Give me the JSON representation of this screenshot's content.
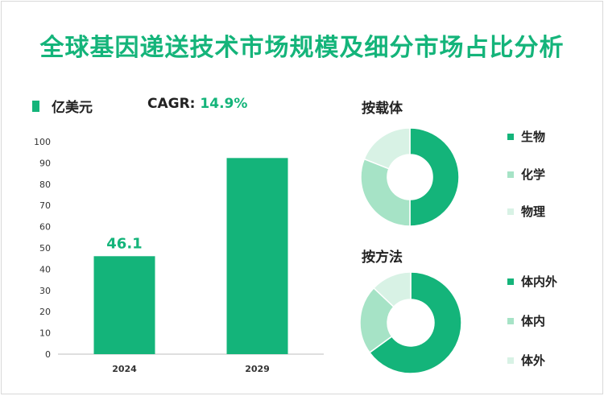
{
  "title": "全球基因递送技术市场规模及细分市场占比分析",
  "legend": {
    "label": "亿美元",
    "color": "#14b47a"
  },
  "cagr": {
    "label": "CAGR:",
    "value": "14.9%"
  },
  "chart_data": [
    {
      "type": "bar",
      "categories": [
        "2024",
        "2029"
      ],
      "values": [
        46.1,
        92.3
      ],
      "data_labels": [
        "46.1",
        ""
      ],
      "ylim": [
        0,
        100
      ],
      "yticks": [
        0,
        10,
        20,
        30,
        40,
        50,
        60,
        70,
        80,
        90,
        100
      ],
      "color": "#14b47a",
      "series": [
        {
          "name": "亿美元",
          "values": [
            46.1,
            92.3
          ]
        }
      ]
    },
    {
      "type": "pie",
      "donut": true,
      "title": "按载体",
      "labels": [
        "生物",
        "化学",
        "物理"
      ],
      "values": [
        50,
        31,
        19
      ],
      "colors": [
        "#14b47a",
        "#a6e3c6",
        "#d8f2e5"
      ]
    },
    {
      "type": "pie",
      "donut": true,
      "title": "按方法",
      "labels": [
        "体内外",
        "体内",
        "体外"
      ],
      "values": [
        65,
        22,
        13
      ],
      "colors": [
        "#14b47a",
        "#a6e3c6",
        "#d8f2e5"
      ]
    }
  ]
}
